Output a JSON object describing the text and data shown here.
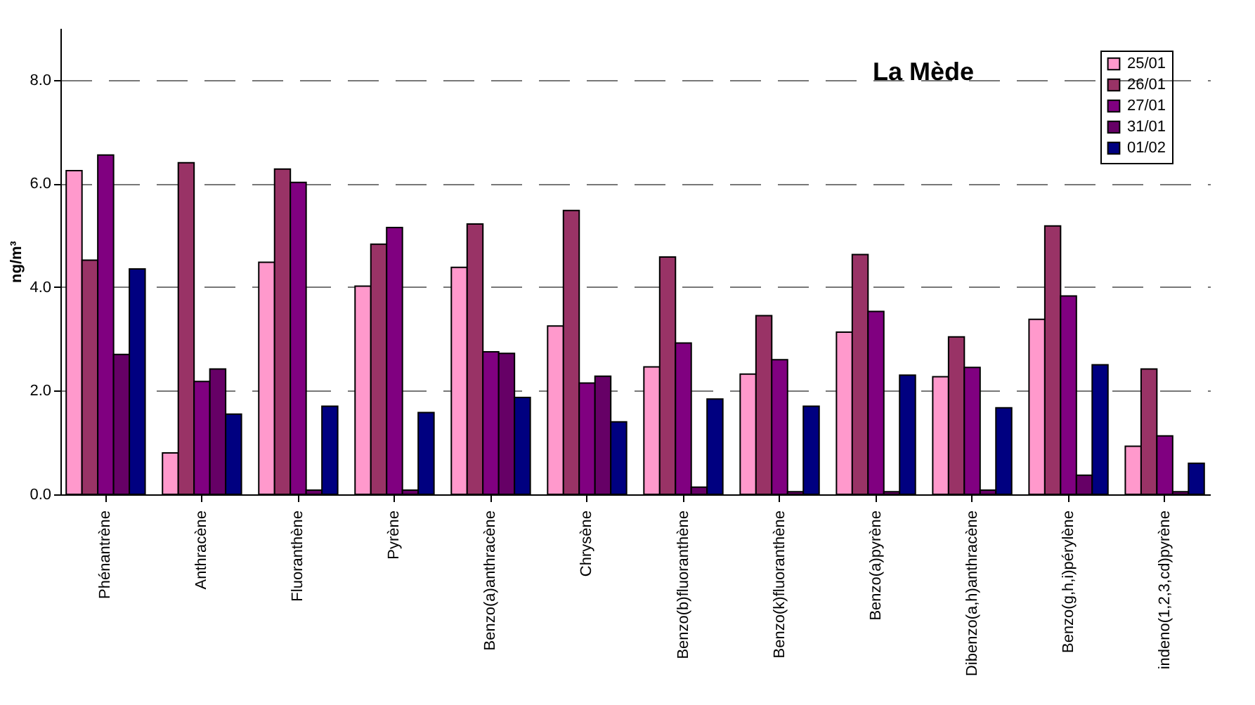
{
  "chart_data": {
    "type": "bar",
    "title": "La Mède",
    "ylabel": "ng/m³",
    "categories": [
      "Phénantrène",
      "Anthracène",
      "Fluoranthène",
      "Pyrène",
      "Benzo(a)anthracène",
      "Chrysène",
      "Benzo(b)fluoranthène",
      "Benzo(k)fluoranthène",
      "Benzo(a)pyrène",
      "Dibenzo(a,h)anthracène",
      "Benzo(g,h,i)pérylène",
      "indeno(1,2,3,cd)pyrène"
    ],
    "series": [
      {
        "name": "25/01",
        "color": "#ff99cc",
        "values": [
          6.25,
          0.8,
          4.48,
          4.02,
          4.38,
          3.25,
          2.46,
          2.32,
          3.13,
          2.27,
          3.38,
          0.93
        ]
      },
      {
        "name": "26/01",
        "color": "#993366",
        "values": [
          4.52,
          6.4,
          6.28,
          4.83,
          5.22,
          5.48,
          4.58,
          3.45,
          4.63,
          3.04,
          5.18,
          2.42
        ]
      },
      {
        "name": "27/01",
        "color": "#800080",
        "values": [
          6.55,
          2.18,
          6.02,
          5.15,
          2.75,
          2.15,
          2.92,
          2.6,
          3.53,
          2.45,
          3.83,
          1.13
        ]
      },
      {
        "name": "31/01",
        "color": "#660066",
        "values": [
          2.7,
          2.42,
          0.08,
          0.08,
          2.72,
          2.28,
          0.14,
          0.05,
          0.05,
          0.08,
          0.37,
          0.05
        ]
      },
      {
        "name": "01/02",
        "color": "#000080",
        "values": [
          4.35,
          1.55,
          1.7,
          1.58,
          1.87,
          1.4,
          1.84,
          1.7,
          2.3,
          1.67,
          2.5,
          0.6
        ]
      }
    ],
    "ylim": [
      0,
      9
    ],
    "yticks": [
      {
        "value": 0,
        "label": "0.0"
      },
      {
        "value": 2,
        "label": "2.0"
      },
      {
        "value": 4,
        "label": "4.0"
      },
      {
        "value": 6,
        "label": "6.0"
      },
      {
        "value": 8,
        "label": "8.0"
      }
    ],
    "grid": "y",
    "legend": "top right"
  }
}
